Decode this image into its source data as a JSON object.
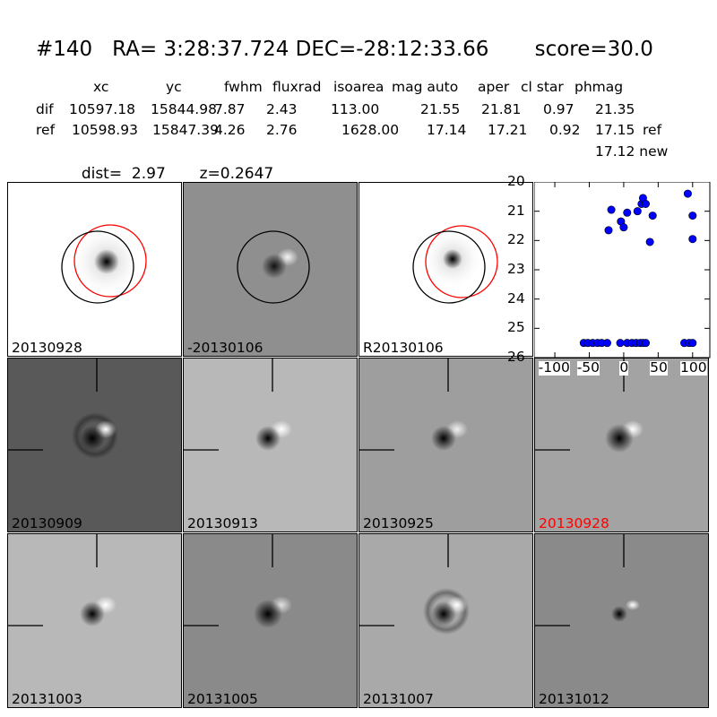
{
  "header": {
    "title": "#140   RA= 3:28:37.724 DEC=-28:12:33.66       score=30.0",
    "columns": [
      "xc",
      "yc",
      "fwhm",
      "fluxrad",
      "isoarea",
      "mag auto",
      "aper",
      "cl star",
      "phmag"
    ],
    "rows": [
      {
        "label": "dif",
        "values": [
          "10597.18",
          "15844.98",
          "7.87",
          "2.43",
          "113.00",
          "21.55",
          "21.81",
          "0.97",
          "21.35"
        ],
        "suffix": ""
      },
      {
        "label": "ref",
        "values": [
          "10598.93",
          "15847.39",
          "4.26",
          "2.76",
          "1628.00",
          "17.14",
          "17.21",
          "0.92",
          "17.15"
        ],
        "suffix": "ref"
      }
    ],
    "extra_line": "17.12 new",
    "dist_label": "dist=",
    "dist_value": "2.97",
    "z_label": "z=0.2647"
  },
  "panels": [
    {
      "label": "20130928",
      "kind": "science",
      "label_color": "#000000"
    },
    {
      "label": "-20130106",
      "kind": "diff",
      "label_color": "#000000"
    },
    {
      "label": "R20130106",
      "kind": "reference",
      "label_color": "#000000"
    },
    {
      "label": "20130909",
      "kind": "stamp-dark-ring",
      "label_color": "#000000"
    },
    {
      "label": "20130913",
      "kind": "stamp-light",
      "label_color": "#000000"
    },
    {
      "label": "20130925",
      "kind": "stamp-mid",
      "label_color": "#000000"
    },
    {
      "label": "20130928",
      "kind": "stamp-mid-big",
      "label_color": "#ff0000"
    },
    {
      "label": "20131003",
      "kind": "stamp-light",
      "label_color": "#000000"
    },
    {
      "label": "20131005",
      "kind": "stamp-noisy",
      "label_color": "#000000"
    },
    {
      "label": "20131007",
      "kind": "stamp-ring",
      "label_color": "#000000"
    },
    {
      "label": "20131012",
      "kind": "stamp-flat",
      "label_color": "#000000"
    }
  ],
  "chart_data": {
    "type": "scatter",
    "x_ticks": [
      "-100",
      "-50",
      "0",
      "50",
      "100"
    ],
    "y_ticks": [
      "20",
      "21",
      "22",
      "23",
      "24",
      "25",
      "26"
    ],
    "xlim": [
      -130,
      125
    ],
    "ylim": [
      26,
      20
    ],
    "marker_color": "#0000ff",
    "points": [
      [
        -58,
        25.5
      ],
      [
        -52,
        25.5
      ],
      [
        -45,
        25.5
      ],
      [
        -38,
        25.5
      ],
      [
        -32,
        25.5
      ],
      [
        -24,
        25.5
      ],
      [
        -5,
        25.5
      ],
      [
        5,
        25.5
      ],
      [
        12,
        25.5
      ],
      [
        18,
        25.5
      ],
      [
        24,
        25.5
      ],
      [
        28,
        25.5
      ],
      [
        32,
        25.5
      ],
      [
        88,
        25.5
      ],
      [
        95,
        25.5
      ],
      [
        100,
        25.5
      ],
      [
        -22,
        21.65
      ],
      [
        -18,
        20.95
      ],
      [
        -4,
        21.35
      ],
      [
        0,
        21.55
      ],
      [
        5,
        21.05
      ],
      [
        20,
        21.0
      ],
      [
        26,
        20.75
      ],
      [
        28,
        20.55
      ],
      [
        32,
        20.75
      ],
      [
        38,
        22.05
      ],
      [
        42,
        21.15
      ],
      [
        93,
        20.4
      ],
      [
        100,
        21.15
      ],
      [
        100,
        21.95
      ]
    ]
  }
}
